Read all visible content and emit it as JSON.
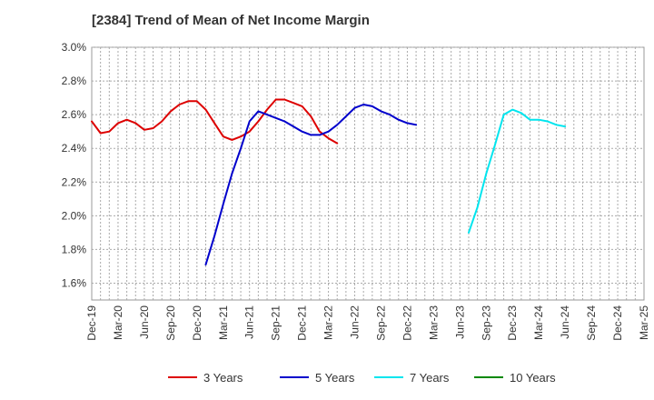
{
  "chart_data": {
    "type": "line",
    "title": "[2384]  Trend of Mean of Net Income Margin",
    "y_unit": "%",
    "ylim": [
      1.5,
      3.0
    ],
    "y_ticks": [
      1.6,
      1.8,
      2.0,
      2.2,
      2.4,
      2.6,
      2.8,
      3.0
    ],
    "y_tick_labels": [
      "1.6%",
      "1.8%",
      "2.0%",
      "2.2%",
      "2.4%",
      "2.6%",
      "2.8%",
      "3.0%"
    ],
    "x_ticks": [
      "Dec-19",
      "Mar-20",
      "Jun-20",
      "Sep-20",
      "Dec-20",
      "Mar-21",
      "Jun-21",
      "Sep-21",
      "Dec-21",
      "Mar-22",
      "Jun-22",
      "Sep-22",
      "Dec-22",
      "Mar-23",
      "Jun-23",
      "Sep-23",
      "Dec-23",
      "Mar-24",
      "Jun-24",
      "Sep-24",
      "Dec-24",
      "Mar-25"
    ],
    "grid": true,
    "legend_position": "bottom",
    "series": [
      {
        "name": "3 Years",
        "color": "#dd0000",
        "values": [
          2.56,
          2.49,
          2.5,
          2.55,
          2.57,
          2.55,
          2.51,
          2.52,
          2.56,
          2.62,
          2.66,
          2.68,
          2.68,
          2.63,
          2.55,
          2.47,
          2.45,
          2.47,
          2.5,
          2.56,
          2.63,
          2.69,
          2.69,
          2.67,
          2.65,
          2.59,
          2.5,
          2.46,
          2.43
        ]
      },
      {
        "name": "5 Years",
        "color": "#0000cc",
        "values": [
          null,
          null,
          null,
          null,
          null,
          null,
          null,
          null,
          null,
          null,
          null,
          null,
          null,
          1.71,
          1.88,
          2.07,
          2.25,
          2.4,
          2.56,
          2.62,
          2.6,
          2.58,
          2.56,
          2.53,
          2.5,
          2.48,
          2.48,
          2.5,
          2.54,
          2.59,
          2.64,
          2.66,
          2.65,
          2.62,
          2.6,
          2.57,
          2.55,
          2.54
        ]
      },
      {
        "name": "7 Years",
        "color": "#00e5ee",
        "values": [
          null,
          null,
          null,
          null,
          null,
          null,
          null,
          null,
          null,
          null,
          null,
          null,
          null,
          null,
          null,
          null,
          null,
          null,
          null,
          null,
          null,
          null,
          null,
          null,
          null,
          null,
          null,
          null,
          null,
          null,
          null,
          null,
          null,
          null,
          null,
          null,
          null,
          null,
          null,
          null,
          null,
          null,
          null,
          1.9,
          2.05,
          2.25,
          2.42,
          2.6,
          2.63,
          2.61,
          2.57,
          2.57,
          2.56,
          2.54,
          2.53
        ]
      },
      {
        "name": "10 Years",
        "color": "#008800",
        "values": []
      }
    ]
  }
}
